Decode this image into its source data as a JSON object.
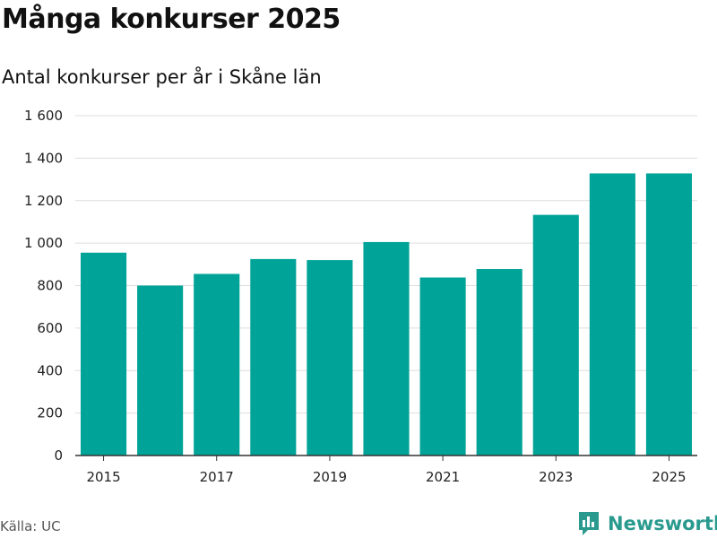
{
  "chart_data": {
    "type": "bar",
    "title": "Många konkurser 2025",
    "subtitle": "Antal konkurser per år i Skåne län",
    "categories": [
      "2015",
      "2016",
      "2017",
      "2018",
      "2019",
      "2020",
      "2021",
      "2022",
      "2023",
      "2024",
      "2025"
    ],
    "values": [
      955,
      800,
      855,
      925,
      920,
      1005,
      838,
      878,
      1133,
      1328,
      1328
    ],
    "x_tick_labels": [
      "2015",
      "2017",
      "2019",
      "2021",
      "2023",
      "2025"
    ],
    "y_ticks": [
      0,
      200,
      400,
      600,
      800,
      1000,
      1200,
      1400,
      1600
    ],
    "y_tick_labels": [
      "0",
      "200",
      "400",
      "600",
      "800",
      "1 000",
      "1 200",
      "1 400",
      "1 600"
    ],
    "ylim": [
      0,
      1600
    ],
    "xlabel": "",
    "ylabel": "",
    "grid": true,
    "bar_color": "#00a398",
    "grid_color": "#dddddd",
    "axis_color": "#333333"
  },
  "footer": {
    "source": "Källa: UC",
    "brand_name": "Newsworthy",
    "brand_icon": "newsworthy-logo-icon",
    "brand_color": "#2a9a8e"
  }
}
